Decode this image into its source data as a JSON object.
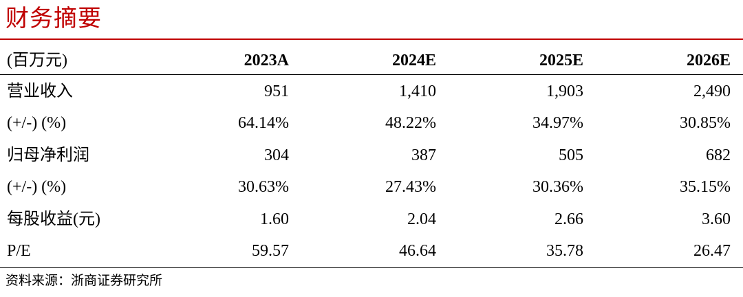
{
  "header": {
    "title": "财务摘要"
  },
  "table": {
    "columns": [
      "(百万元)",
      "2023A",
      "2024E",
      "2025E",
      "2026E"
    ],
    "rows": [
      [
        "营业收入",
        "951",
        "1,410",
        "1,903",
        "2,490"
      ],
      [
        "(+/-) (%)",
        "64.14%",
        "48.22%",
        "34.97%",
        "30.85%"
      ],
      [
        "归母净利润",
        "304",
        "387",
        "505",
        "682"
      ],
      [
        "(+/-) (%)",
        "30.63%",
        "27.43%",
        "30.36%",
        "35.15%"
      ],
      [
        "每股收益(元)",
        "1.60",
        "2.04",
        "2.66",
        "3.60"
      ],
      [
        "P/E",
        "59.57",
        "46.64",
        "35.78",
        "26.47"
      ]
    ]
  },
  "footer": {
    "source": "资料来源：浙商证券研究所"
  }
}
